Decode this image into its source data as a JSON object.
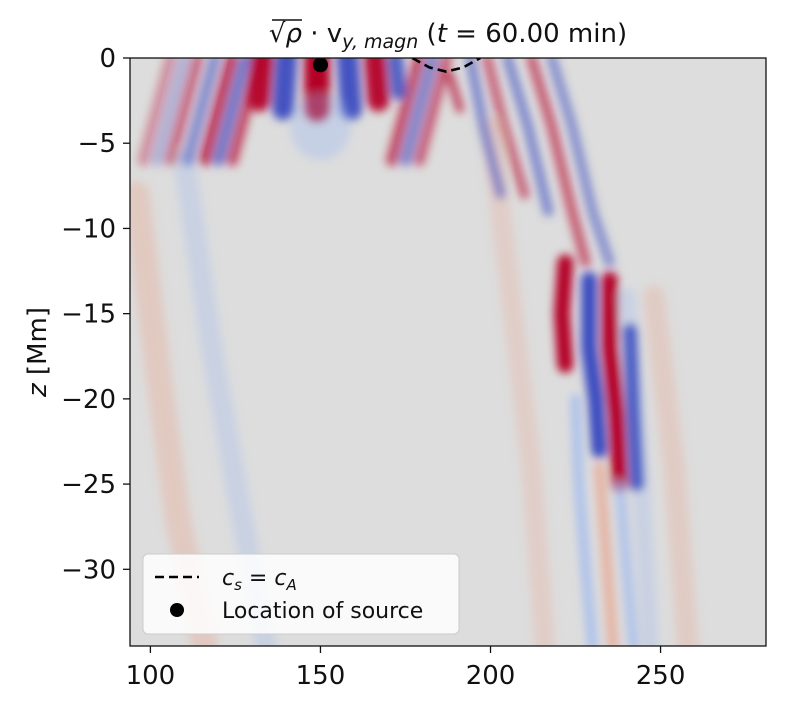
{
  "chart_data": {
    "type": "heatmap",
    "title": "√ρ · v_y,magn (t = 60.00 min)",
    "title_parts": {
      "root_symbol": "√",
      "rho": "ρ",
      "dot": " · v",
      "subscript": "y, magn",
      "paren_open": " (",
      "t_var": "t",
      "time_expr": " = 60.00 min)"
    },
    "xlabel": "",
    "ylabel": "z [Mm]",
    "ylabel_parts": {
      "var": "z",
      "unit": " [Mm]"
    },
    "xlim": [
      94,
      281
    ],
    "ylim": [
      -34.5,
      0
    ],
    "x_ticks": [
      100,
      150,
      200,
      250
    ],
    "y_ticks": [
      0,
      -5,
      -10,
      -15,
      -20,
      -25,
      -30
    ],
    "tick_labels": {
      "x": [
        "100",
        "150",
        "200",
        "250"
      ],
      "y": [
        "0",
        "−5",
        "−10",
        "−15",
        "−20",
        "−25",
        "−30"
      ]
    },
    "colormap": "coolwarm",
    "colors": {
      "positive": "#b40426",
      "negative": "#3b4cc0",
      "neutral": "#dddddd"
    },
    "grid": false,
    "source_location": {
      "x": 150,
      "z": -0.4
    },
    "cs_equals_ca_contour": [
      {
        "x": 177,
        "z": 0
      },
      {
        "x": 182,
        "z": -0.55
      },
      {
        "x": 187,
        "z": -0.8
      },
      {
        "x": 192,
        "z": -0.55
      },
      {
        "x": 197,
        "z": 0
      }
    ],
    "legend": {
      "position": "lower-left",
      "entries": [
        {
          "label_parts": {
            "a": "c",
            "a_sub": "s",
            "eq": " = ",
            "b": "c",
            "b_sub": "A"
          },
          "style": "dashed-line",
          "color": "#000000"
        },
        {
          "label": "Location of source",
          "style": "marker-circle",
          "color": "#000000"
        }
      ]
    }
  }
}
